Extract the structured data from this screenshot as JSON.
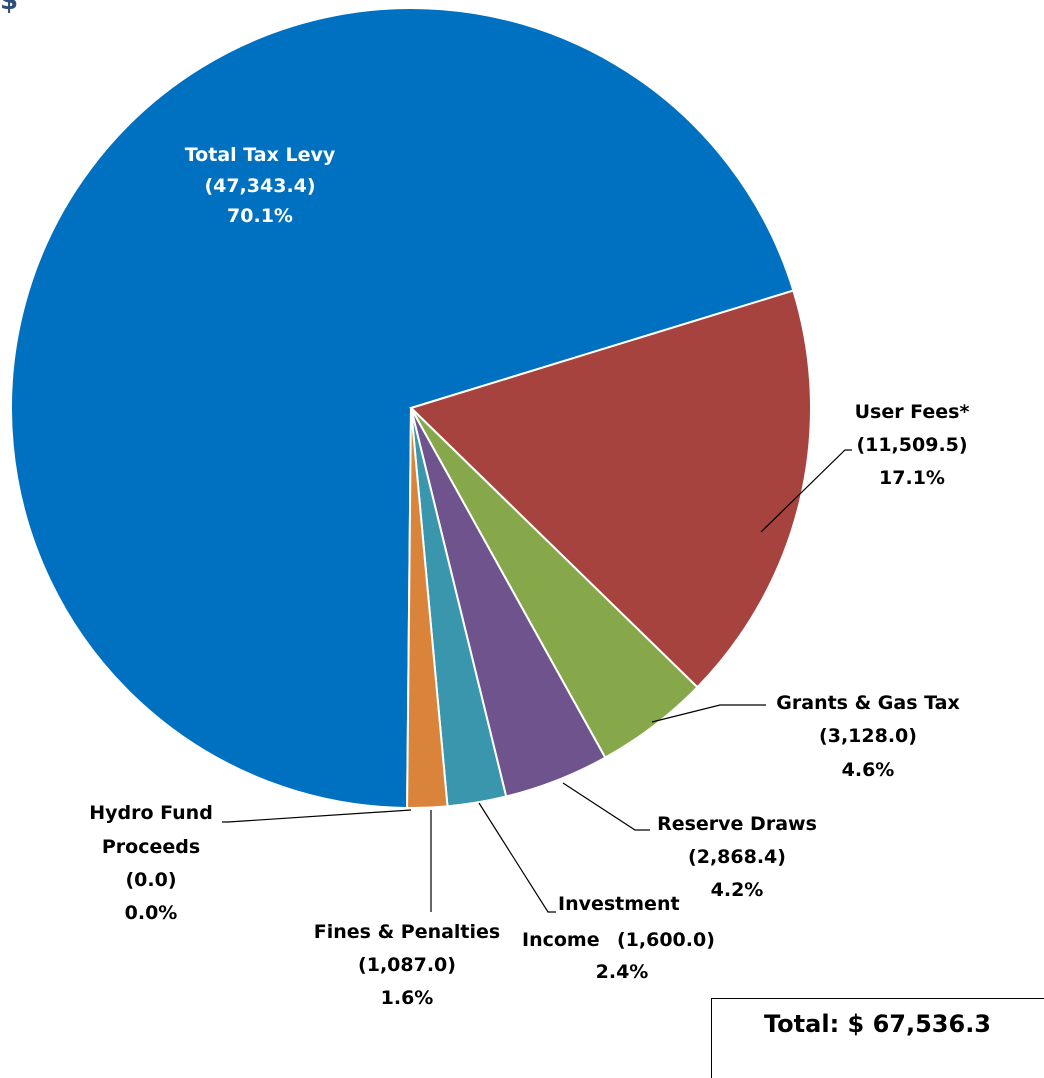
{
  "corner_fragment": "$",
  "total_label": "Total: $ 67,536.3",
  "chart_data": {
    "type": "pie",
    "title": "",
    "slices": [
      {
        "label": "Total Tax Levy",
        "amount": "(47,343.4)",
        "percent": "70.1%",
        "value": 47343.4,
        "color": "#0070c0"
      },
      {
        "label": "User Fees*",
        "amount": "(11,509.5)",
        "percent": "17.1%",
        "value": 11509.5,
        "color": "#a6433f"
      },
      {
        "label": "Grants & Gas Tax",
        "amount": "(3,128.0)",
        "percent": "4.6%",
        "value": 3128.0,
        "color": "#86a84a"
      },
      {
        "label": "Reserve Draws",
        "amount": "(2,868.4)",
        "percent": "4.2%",
        "value": 2868.4,
        "color": "#6e538c"
      },
      {
        "label_line1": "Investment",
        "label_line2": "Income",
        "amount": "(1,600.0)",
        "percent": "2.4%",
        "value": 1600.0,
        "color": "#3a96ad"
      },
      {
        "label": "Fines & Penalties",
        "amount": "(1,087.0)",
        "percent": "1.6%",
        "value": 1087.0,
        "color": "#d9843a"
      },
      {
        "label_line1": "Hydro Fund",
        "label_line2": "Proceeds",
        "amount": "(0.0)",
        "percent": "0.0%",
        "value": 0.0,
        "color": "#c0c0c0"
      }
    ]
  }
}
